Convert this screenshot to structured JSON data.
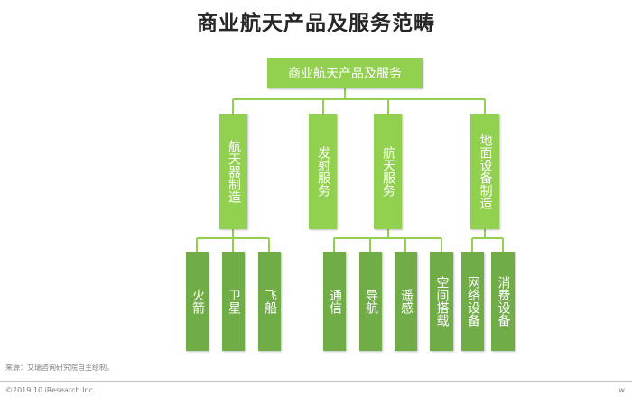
{
  "title": "商业航天产品及服务范畴",
  "root": "商业航天产品及服务",
  "categories": [
    {
      "label": "航天器制造",
      "children": [
        "火箭",
        "卫星",
        "飞船"
      ]
    },
    {
      "label": "发射服务",
      "children": []
    },
    {
      "label": "航天服务",
      "children": [
        "通信",
        "导航",
        "遥感",
        "空间搭载"
      ]
    },
    {
      "label": "地面设备制造",
      "children": [
        "网络设备",
        "消费设备"
      ]
    }
  ],
  "source": "来源：艾瑞咨询研究院自主绘制。",
  "copyright": "©2019.10 iResearch Inc.",
  "corner_mark": "w",
  "colors": {
    "category": "#92d050",
    "leaf": "#70ad47",
    "connector": "#92d050"
  }
}
